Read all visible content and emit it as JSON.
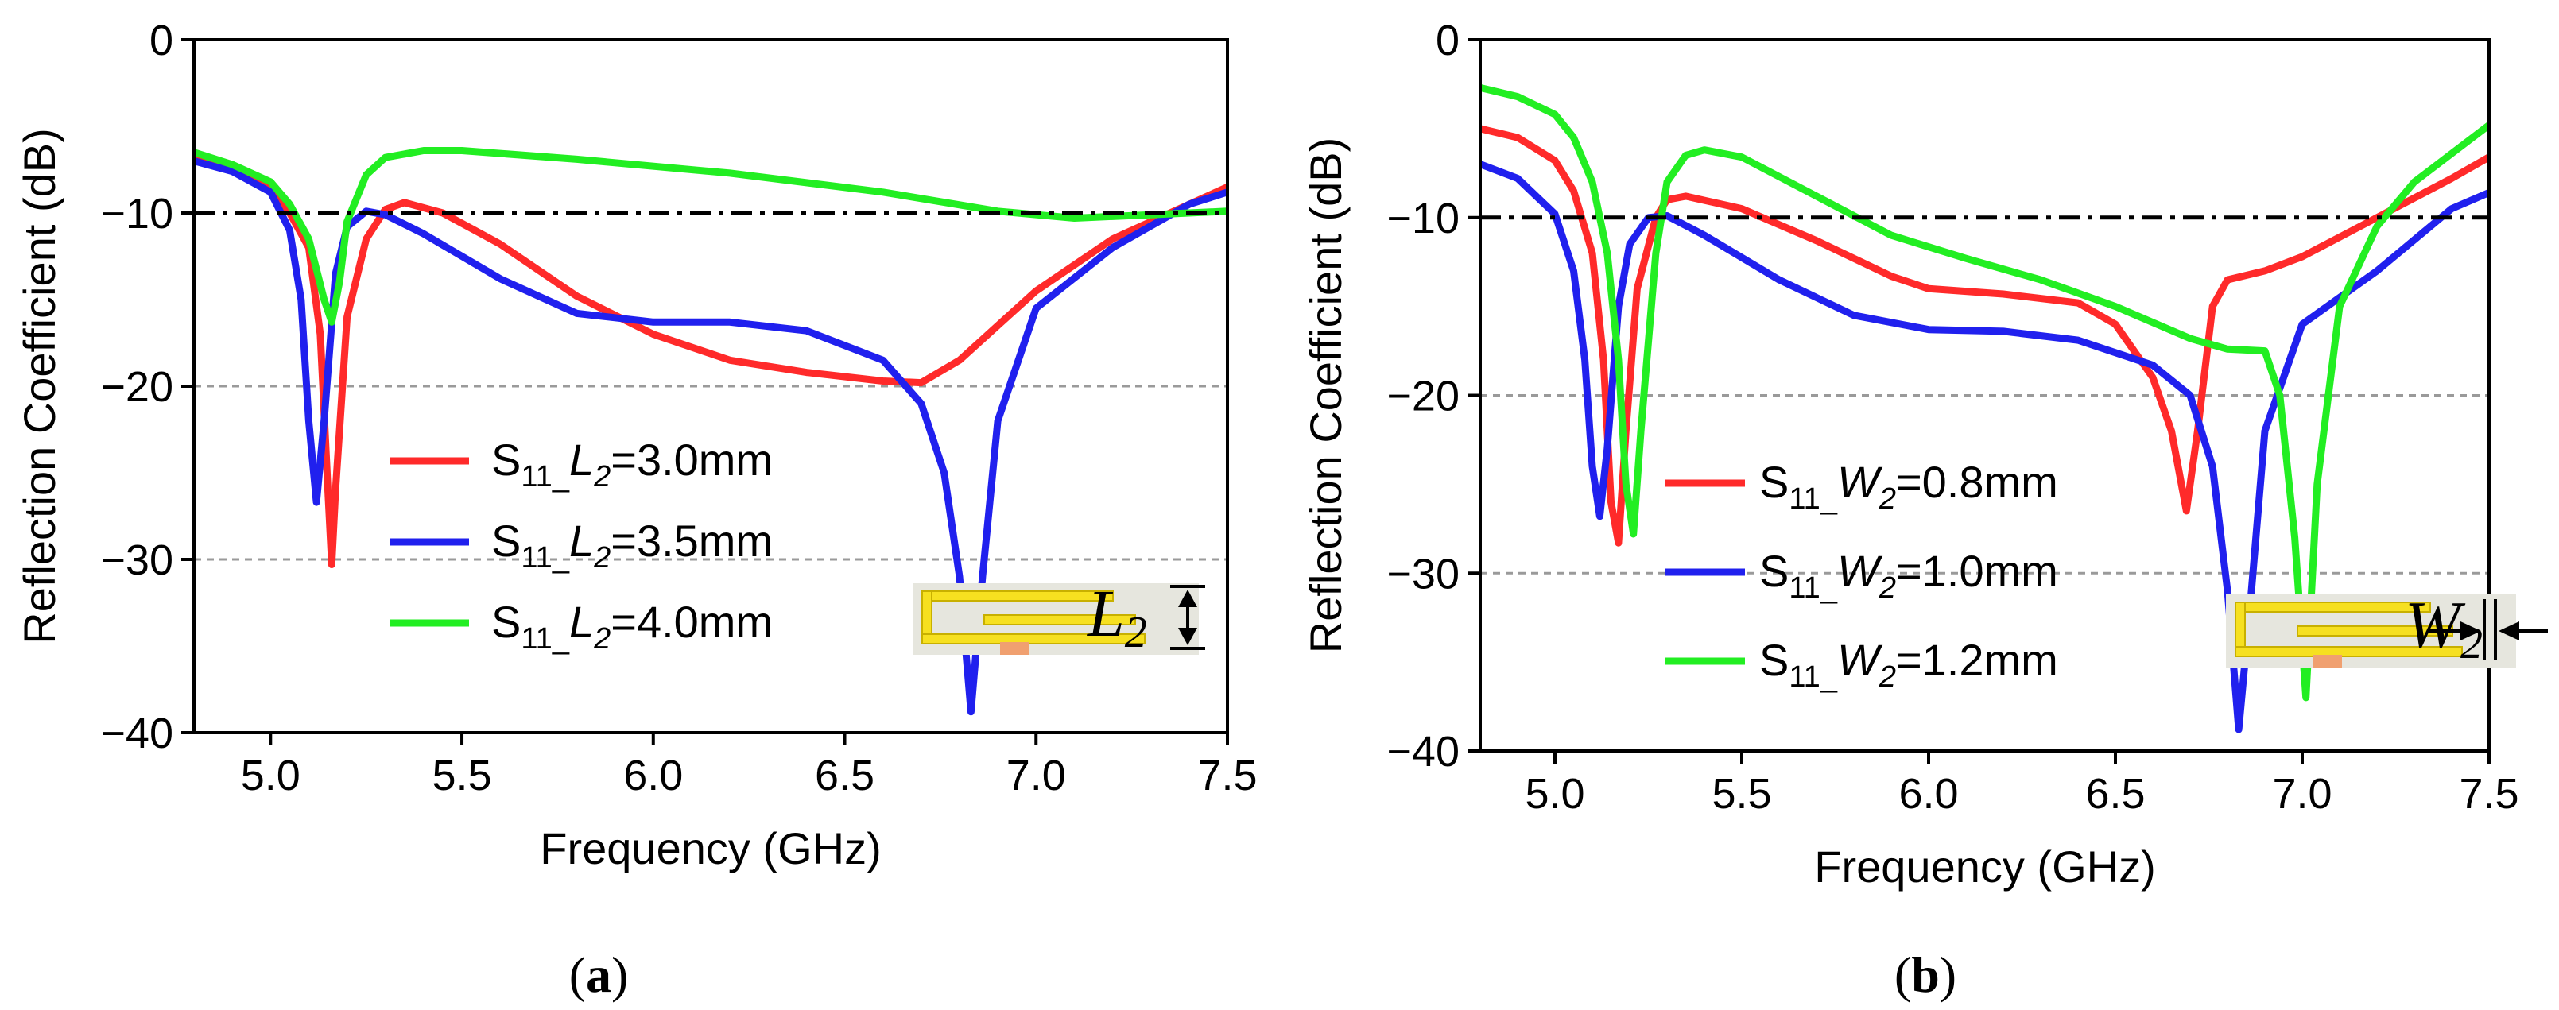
{
  "chart_data": [
    {
      "type": "line",
      "caption_letter": "a",
      "xlabel": "Frequency (GHz)",
      "ylabel": "Reflection Coefficient (dB)",
      "xlim": [
        4.8,
        7.5
      ],
      "ylim": [
        -40,
        0
      ],
      "x_ticks": [
        "5.0",
        "5.5",
        "6.0",
        "6.5",
        "7.0",
        "7.5"
      ],
      "y_ticks": [
        "0",
        "−10",
        "−20",
        "−30",
        "−40"
      ],
      "threshold_line_db": -10,
      "grid_lines_db": [
        -20,
        -30
      ],
      "inset_label": {
        "main": "L",
        "sub": "2"
      },
      "legend_position": "lower-left",
      "series": [
        {
          "name": "S11_L2=3.0mm",
          "label_prefix": "S",
          "label_sub": "11",
          "label_var": "L",
          "label_var_sub": "2",
          "label_value": "=3.0mm",
          "color": "#ff2a2a",
          "points": [
            [
              4.8,
              -6.9
            ],
            [
              4.9,
              -7.5
            ],
            [
              5.0,
              -8.5
            ],
            [
              5.05,
              -10.0
            ],
            [
              5.1,
              -12.0
            ],
            [
              5.13,
              -17.0
            ],
            [
              5.15,
              -26.0
            ],
            [
              5.16,
              -30.3
            ],
            [
              5.17,
              -26.0
            ],
            [
              5.2,
              -16.0
            ],
            [
              5.25,
              -11.5
            ],
            [
              5.3,
              -9.8
            ],
            [
              5.35,
              -9.4
            ],
            [
              5.45,
              -10.0
            ],
            [
              5.6,
              -11.8
            ],
            [
              5.8,
              -14.8
            ],
            [
              6.0,
              -17.0
            ],
            [
              6.2,
              -18.5
            ],
            [
              6.4,
              -19.2
            ],
            [
              6.6,
              -19.7
            ],
            [
              6.7,
              -19.8
            ],
            [
              6.8,
              -18.5
            ],
            [
              6.9,
              -16.5
            ],
            [
              7.0,
              -14.5
            ],
            [
              7.2,
              -11.5
            ],
            [
              7.4,
              -9.5
            ],
            [
              7.5,
              -8.5
            ]
          ]
        },
        {
          "name": "S11_L2=3.5mm",
          "label_prefix": "S",
          "label_sub": "11",
          "label_var": "L",
          "label_var_sub": "2",
          "label_value": "=3.5mm",
          "color": "#2020ee",
          "points": [
            [
              4.8,
              -7.0
            ],
            [
              4.9,
              -7.6
            ],
            [
              5.0,
              -8.8
            ],
            [
              5.05,
              -11.0
            ],
            [
              5.08,
              -15.0
            ],
            [
              5.1,
              -22.0
            ],
            [
              5.12,
              -26.7
            ],
            [
              5.14,
              -22.0
            ],
            [
              5.17,
              -13.5
            ],
            [
              5.2,
              -10.8
            ],
            [
              5.25,
              -9.9
            ],
            [
              5.3,
              -10.1
            ],
            [
              5.4,
              -11.2
            ],
            [
              5.6,
              -13.8
            ],
            [
              5.8,
              -15.8
            ],
            [
              6.0,
              -16.3
            ],
            [
              6.2,
              -16.3
            ],
            [
              6.4,
              -16.8
            ],
            [
              6.6,
              -18.5
            ],
            [
              6.7,
              -21.0
            ],
            [
              6.76,
              -25.0
            ],
            [
              6.8,
              -31.0
            ],
            [
              6.83,
              -38.8
            ],
            [
              6.86,
              -31.0
            ],
            [
              6.9,
              -22.0
            ],
            [
              7.0,
              -15.5
            ],
            [
              7.2,
              -12.0
            ],
            [
              7.4,
              -9.5
            ],
            [
              7.5,
              -8.8
            ]
          ]
        },
        {
          "name": "S11_L2=4.0mm",
          "label_prefix": "S",
          "label_sub": "11",
          "label_var": "L",
          "label_var_sub": "2",
          "label_value": "=4.0mm",
          "color": "#22ee22",
          "points": [
            [
              4.8,
              -6.5
            ],
            [
              4.9,
              -7.2
            ],
            [
              5.0,
              -8.2
            ],
            [
              5.05,
              -9.5
            ],
            [
              5.1,
              -11.5
            ],
            [
              5.14,
              -15.0
            ],
            [
              5.16,
              -16.3
            ],
            [
              5.18,
              -14.0
            ],
            [
              5.2,
              -10.5
            ],
            [
              5.25,
              -7.8
            ],
            [
              5.3,
              -6.8
            ],
            [
              5.4,
              -6.4
            ],
            [
              5.5,
              -6.4
            ],
            [
              5.8,
              -6.9
            ],
            [
              6.2,
              -7.7
            ],
            [
              6.6,
              -8.8
            ],
            [
              6.9,
              -9.9
            ],
            [
              7.1,
              -10.3
            ],
            [
              7.3,
              -10.1
            ],
            [
              7.5,
              -9.9
            ]
          ]
        }
      ]
    },
    {
      "type": "line",
      "caption_letter": "b",
      "xlabel": "Frequency (GHz)",
      "ylabel": "Reflection Coefficient (dB)",
      "xlim": [
        4.8,
        7.5
      ],
      "ylim": [
        -40,
        0
      ],
      "x_ticks": [
        "5.0",
        "5.5",
        "6.0",
        "6.5",
        "7.0",
        "7.5"
      ],
      "y_ticks": [
        "0",
        "−10",
        "−20",
        "−30",
        "−40"
      ],
      "threshold_line_db": -10,
      "grid_lines_db": [
        -20,
        -30
      ],
      "inset_label": {
        "main": "W",
        "sub": "2"
      },
      "legend_position": "lower-center",
      "series": [
        {
          "name": "S11_W2=0.8mm",
          "label_prefix": "S",
          "label_sub": "11",
          "label_var": "W",
          "label_var_sub": "2",
          "label_value": "=0.8mm",
          "color": "#ff2a2a",
          "points": [
            [
              4.8,
              -5.0
            ],
            [
              4.9,
              -5.5
            ],
            [
              5.0,
              -6.8
            ],
            [
              5.05,
              -8.5
            ],
            [
              5.1,
              -12.0
            ],
            [
              5.13,
              -18.0
            ],
            [
              5.15,
              -26.0
            ],
            [
              5.17,
              -28.3
            ],
            [
              5.19,
              -22.0
            ],
            [
              5.22,
              -14.0
            ],
            [
              5.27,
              -10.0
            ],
            [
              5.3,
              -9.0
            ],
            [
              5.35,
              -8.8
            ],
            [
              5.5,
              -9.5
            ],
            [
              5.7,
              -11.3
            ],
            [
              5.9,
              -13.3
            ],
            [
              6.0,
              -14.0
            ],
            [
              6.2,
              -14.3
            ],
            [
              6.4,
              -14.8
            ],
            [
              6.5,
              -16.0
            ],
            [
              6.6,
              -19.0
            ],
            [
              6.65,
              -22.0
            ],
            [
              6.69,
              -26.5
            ],
            [
              6.72,
              -22.0
            ],
            [
              6.76,
              -15.0
            ],
            [
              6.8,
              -13.5
            ],
            [
              6.9,
              -13.0
            ],
            [
              7.0,
              -12.2
            ],
            [
              7.2,
              -10.0
            ],
            [
              7.4,
              -7.8
            ],
            [
              7.5,
              -6.6
            ]
          ]
        },
        {
          "name": "S11_W2=1.0mm",
          "label_prefix": "S",
          "label_sub": "11",
          "label_var": "W",
          "label_var_sub": "2",
          "label_value": "=1.0mm",
          "color": "#2020ee",
          "points": [
            [
              4.8,
              -7.0
            ],
            [
              4.9,
              -7.8
            ],
            [
              5.0,
              -9.8
            ],
            [
              5.05,
              -13.0
            ],
            [
              5.08,
              -18.0
            ],
            [
              5.1,
              -24.0
            ],
            [
              5.12,
              -26.8
            ],
            [
              5.14,
              -23.0
            ],
            [
              5.17,
              -15.0
            ],
            [
              5.2,
              -11.5
            ],
            [
              5.25,
              -10.0
            ],
            [
              5.3,
              -9.9
            ],
            [
              5.4,
              -11.0
            ],
            [
              5.6,
              -13.5
            ],
            [
              5.8,
              -15.5
            ],
            [
              6.0,
              -16.3
            ],
            [
              6.2,
              -16.4
            ],
            [
              6.4,
              -16.9
            ],
            [
              6.6,
              -18.3
            ],
            [
              6.7,
              -20.0
            ],
            [
              6.76,
              -24.0
            ],
            [
              6.8,
              -31.0
            ],
            [
              6.83,
              -38.8
            ],
            [
              6.86,
              -32.0
            ],
            [
              6.9,
              -22.0
            ],
            [
              7.0,
              -16.0
            ],
            [
              7.2,
              -13.0
            ],
            [
              7.4,
              -9.5
            ],
            [
              7.5,
              -8.6
            ]
          ]
        },
        {
          "name": "S11_W2=1.2mm",
          "label_prefix": "S",
          "label_sub": "11",
          "label_var": "W",
          "label_var_sub": "2",
          "label_value": "=1.2mm",
          "color": "#22ee22",
          "points": [
            [
              4.8,
              -2.7
            ],
            [
              4.9,
              -3.2
            ],
            [
              5.0,
              -4.2
            ],
            [
              5.05,
              -5.5
            ],
            [
              5.1,
              -8.0
            ],
            [
              5.14,
              -12.0
            ],
            [
              5.17,
              -18.0
            ],
            [
              5.19,
              -25.0
            ],
            [
              5.21,
              -27.8
            ],
            [
              5.23,
              -22.0
            ],
            [
              5.27,
              -12.0
            ],
            [
              5.3,
              -8.0
            ],
            [
              5.35,
              -6.5
            ],
            [
              5.4,
              -6.2
            ],
            [
              5.5,
              -6.6
            ],
            [
              5.7,
              -8.8
            ],
            [
              5.9,
              -11.0
            ],
            [
              6.1,
              -12.3
            ],
            [
              6.3,
              -13.5
            ],
            [
              6.5,
              -15.0
            ],
            [
              6.7,
              -16.8
            ],
            [
              6.8,
              -17.4
            ],
            [
              6.9,
              -17.5
            ],
            [
              6.94,
              -20.0
            ],
            [
              6.98,
              -28.0
            ],
            [
              7.01,
              -37.0
            ],
            [
              7.04,
              -25.0
            ],
            [
              7.1,
              -15.0
            ],
            [
              7.2,
              -10.5
            ],
            [
              7.3,
              -8.0
            ],
            [
              7.5,
              -4.8
            ]
          ]
        }
      ]
    }
  ]
}
